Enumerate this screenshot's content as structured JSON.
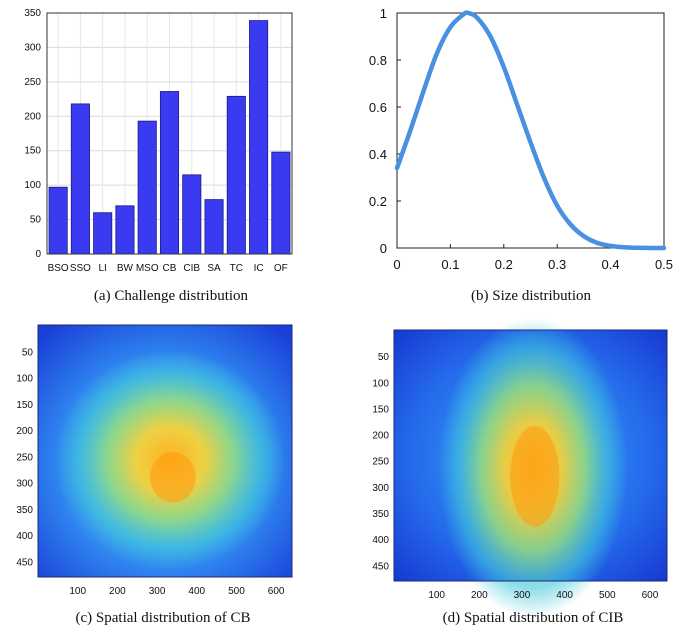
{
  "captions": {
    "a": "(a) Challenge distribution",
    "b": "(b) Size distribution",
    "c": "(c) Spatial distribution of CB",
    "d": "(d) Spatial distribution of CIB"
  },
  "colors": {
    "bar": "#3a3af0",
    "line": "#4a90e2"
  },
  "chart_data": [
    {
      "type": "bar",
      "categories": [
        "BSO",
        "SSO",
        "LI",
        "BW",
        "MSO",
        "CB",
        "CIB",
        "SA",
        "TC",
        "IC",
        "OF"
      ],
      "values": [
        97,
        218,
        60,
        70,
        193,
        236,
        115,
        79,
        229,
        339,
        148
      ],
      "ylim": [
        0,
        350
      ],
      "yticks": [
        0,
        50,
        100,
        150,
        200,
        250,
        300,
        350
      ],
      "grid": true
    },
    {
      "type": "line",
      "x": [
        0,
        0.025,
        0.05,
        0.075,
        0.1,
        0.125,
        0.133,
        0.15,
        0.175,
        0.2,
        0.225,
        0.25,
        0.275,
        0.3,
        0.325,
        0.35,
        0.375,
        0.4,
        0.425,
        0.45,
        0.475,
        0.5
      ],
      "y": [
        0.34,
        0.5,
        0.67,
        0.83,
        0.94,
        0.995,
        1.0,
        0.98,
        0.9,
        0.77,
        0.61,
        0.45,
        0.3,
        0.18,
        0.1,
        0.05,
        0.022,
        0.009,
        0.003,
        0.001,
        0.0,
        0.0
      ],
      "xlim": [
        0,
        0.5
      ],
      "ylim": [
        0,
        1
      ],
      "xticks": [
        0,
        0.1,
        0.2,
        0.3,
        0.4,
        0.5
      ],
      "yticks": [
        0,
        0.2,
        0.4,
        0.6,
        0.8,
        1
      ],
      "grid": false
    },
    {
      "type": "heatmap",
      "xlim": [
        0,
        640
      ],
      "ylim": [
        0,
        480
      ],
      "xticks": [
        100,
        200,
        300,
        400,
        500,
        600
      ],
      "yticks": [
        50,
        100,
        150,
        200,
        250,
        300,
        350,
        400,
        450
      ],
      "peak": {
        "x": 340,
        "y": 290
      }
    },
    {
      "type": "heatmap",
      "xlim": [
        0,
        640
      ],
      "ylim": [
        0,
        480
      ],
      "xticks": [
        100,
        200,
        300,
        400,
        500,
        600
      ],
      "yticks": [
        50,
        100,
        150,
        200,
        250,
        300,
        350,
        400,
        450
      ],
      "peak": {
        "x": 330,
        "y": 280
      }
    }
  ]
}
